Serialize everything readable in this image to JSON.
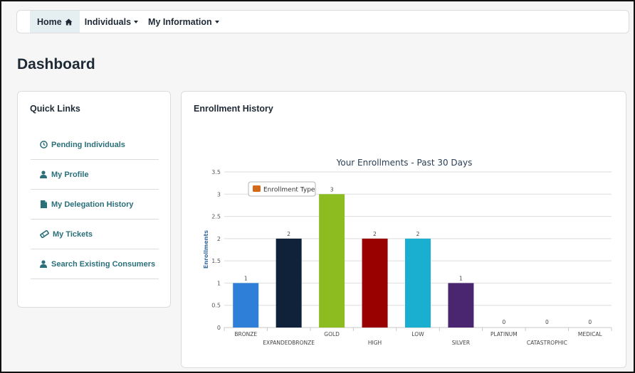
{
  "nav": {
    "home": "Home",
    "individuals": "Individuals",
    "my_information": "My Information"
  },
  "page": {
    "title": "Dashboard"
  },
  "quick_links": {
    "title": "Quick Links",
    "items": [
      {
        "label": "Pending Individuals",
        "icon": "clock-icon"
      },
      {
        "label": "My Profile",
        "icon": "user-icon"
      },
      {
        "label": "My Delegation History",
        "icon": "document-icon"
      },
      {
        "label": "My Tickets",
        "icon": "ticket-icon"
      },
      {
        "label": "Search Existing Consumers",
        "icon": "user-icon"
      }
    ]
  },
  "enrollment": {
    "title": "Enrollment History"
  },
  "colors": {
    "link": "#2a6f7a",
    "text": "#1e2a35"
  },
  "chart_data": {
    "type": "bar",
    "title": "Your Enrollments - Past 30 Days",
    "ylabel": "Enrollments",
    "xlabel": "",
    "ylim": [
      0,
      3.5
    ],
    "yticks": [
      "0",
      "0.5",
      "1",
      "1.5",
      "2",
      "2.5",
      "3",
      "3.5"
    ],
    "categories": [
      "BRONZE",
      "EXPANDEDBRONZE",
      "GOLD",
      "HIGH",
      "LOW",
      "SILVER",
      "PLATINUM",
      "CATASTROPHIC",
      "MEDICAL"
    ],
    "values": [
      1,
      2,
      3,
      2,
      2,
      1,
      0,
      0,
      0
    ],
    "bar_colors": [
      "#2e7fd8",
      "#0f2239",
      "#8cbc1f",
      "#990000",
      "#1aaed0",
      "#4b2670",
      "#888888",
      "#888888",
      "#888888"
    ],
    "legend": {
      "label": "Enrollment Type",
      "color": "#d26a1a",
      "placement": "top-left"
    },
    "grid": true
  }
}
